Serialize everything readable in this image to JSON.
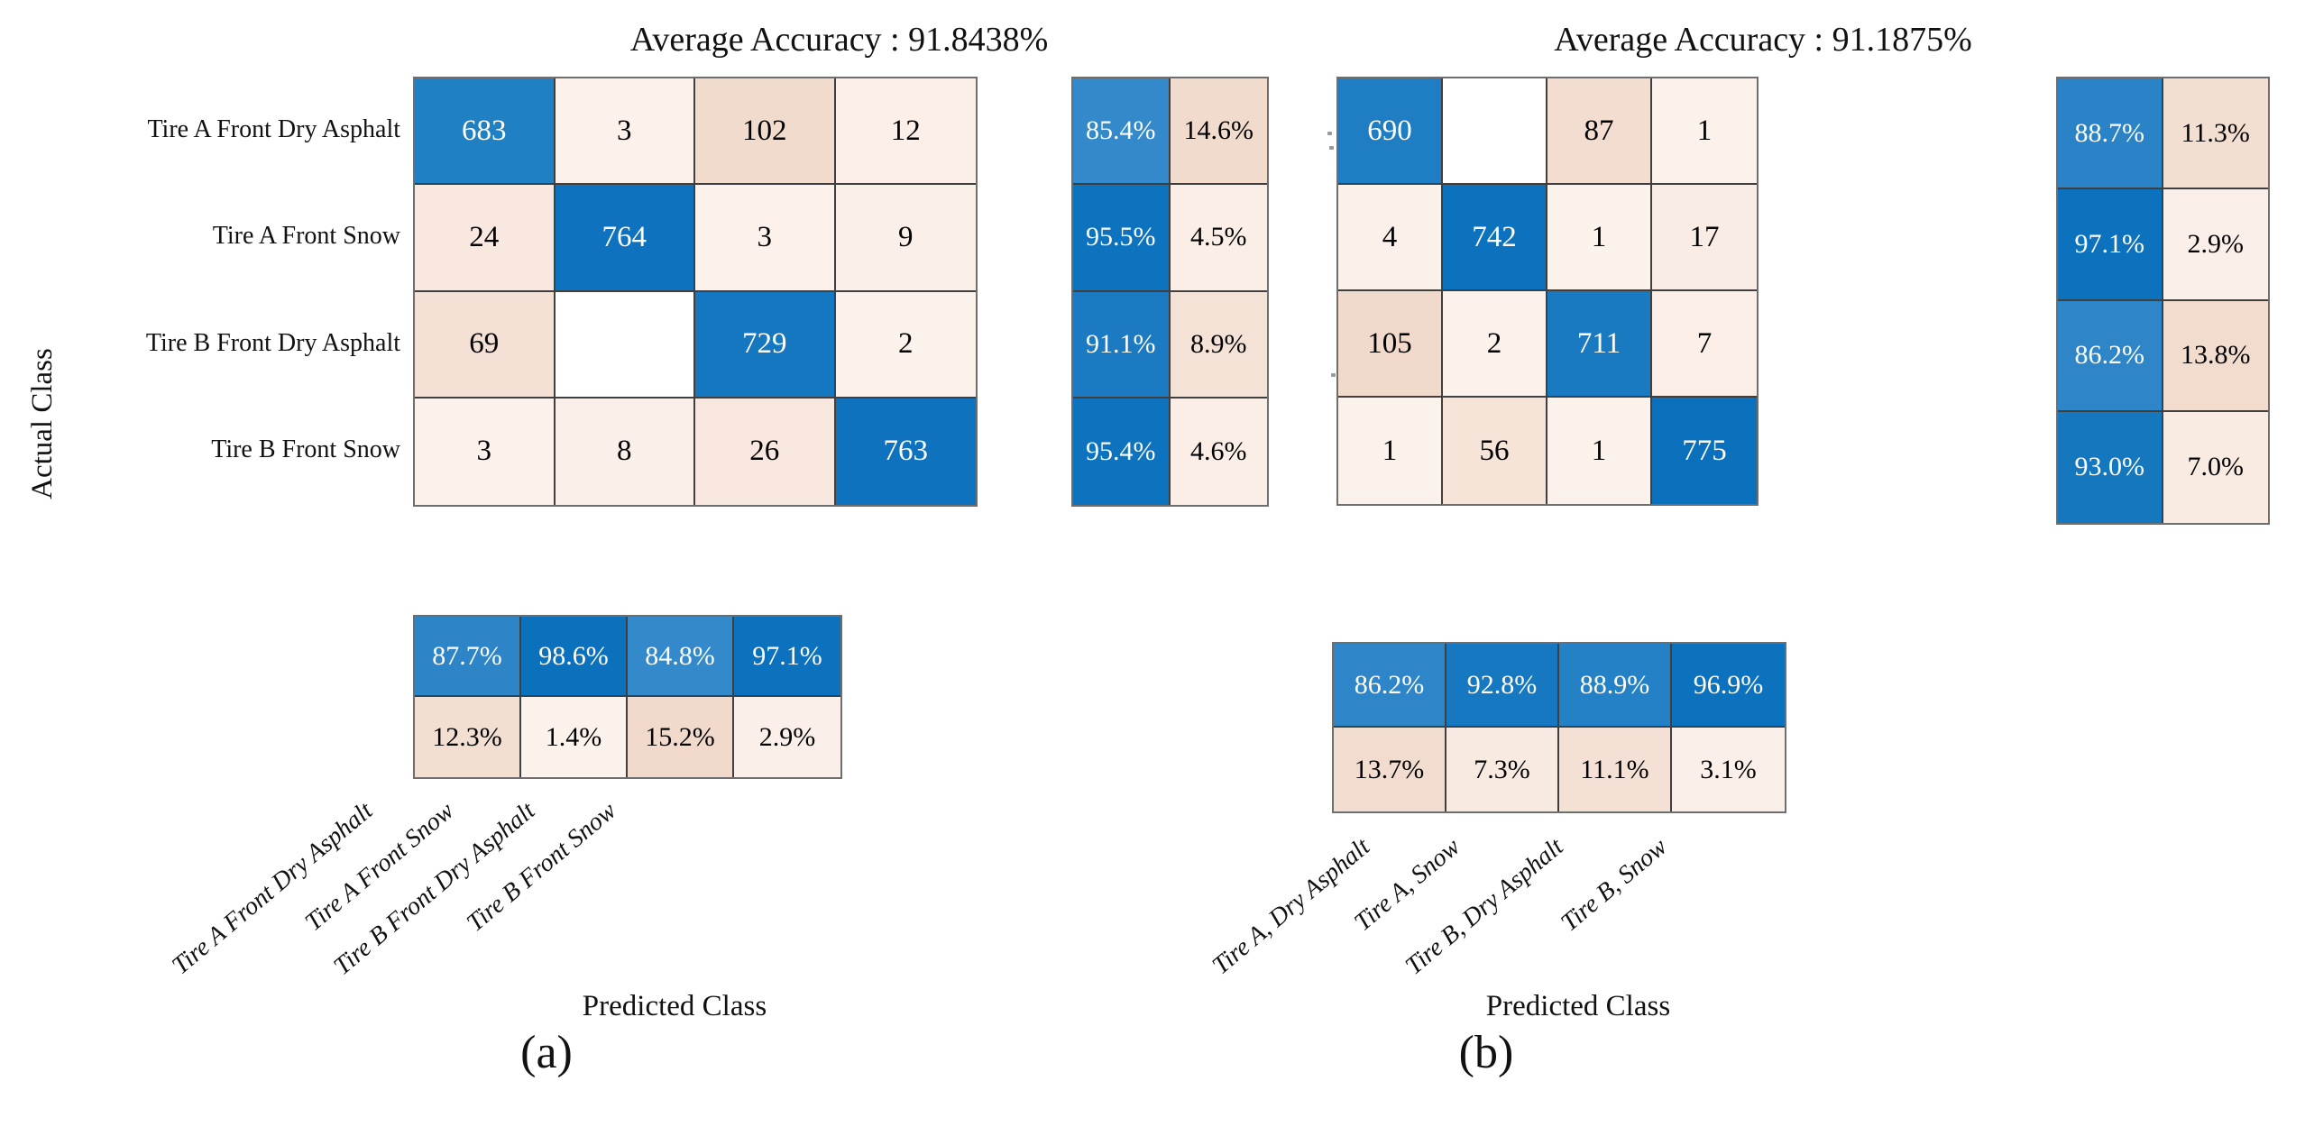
{
  "figure": {
    "background": "#ffffff",
    "grid_line_color": "#3f3f3f",
    "outer_border_color": "#6e6e6e",
    "text_color": "#111111",
    "accent_blue": "#0b70bc",
    "accent_peach": "#f1dacb"
  },
  "chart_data": [
    {
      "type": "heatmap",
      "panel": "(a)",
      "title": "Average Accuracy : 91.8438%",
      "xlabel": "Predicted Class",
      "ylabel": "Actual Class",
      "x_tick_labels": [
        "Tire A Front Dry Asphalt",
        "Tire A Front Snow",
        "Tire B Front Dry Asphalt",
        "Tire B Front Snow"
      ],
      "y_tick_labels": [
        "Tire A Front Dry Asphalt",
        "Tire A Front Snow",
        "Tire B Front Dry Asphalt",
        "Tire B Front Snow"
      ],
      "matrix": {
        "values": [
          [
            683,
            3,
            102,
            12
          ],
          [
            24,
            764,
            3,
            9
          ],
          [
            69,
            null,
            729,
            2
          ],
          [
            3,
            8,
            26,
            763
          ]
        ],
        "bg": [
          [
            "#2080c4",
            "#fcf1eb",
            "#f1dbcc",
            "#fbefe8"
          ],
          [
            "#f8e8df",
            "#0e72be",
            "#fcf1eb",
            "#fbf0e9"
          ],
          [
            "#f4e0d4",
            "#ffffff",
            "#1477c0",
            "#fcf2ec"
          ],
          [
            "#fcf1eb",
            "#fbf0e9",
            "#f8e7de",
            "#0e72be"
          ]
        ]
      },
      "row_summary": {
        "values": [
          [
            "85.4%",
            "14.6%"
          ],
          [
            "95.5%",
            "4.5%"
          ],
          [
            "91.1%",
            "8.9%"
          ],
          [
            "95.4%",
            "4.6%"
          ]
        ],
        "bg": [
          [
            "#3389ca",
            "#f1dbcd"
          ],
          [
            "#0e73be",
            "#faeee6"
          ],
          [
            "#1b7ac1",
            "#f5e2d7"
          ],
          [
            "#0e73be",
            "#faeee6"
          ]
        ]
      },
      "col_summary": {
        "values": [
          [
            "87.7%",
            "98.6%",
            "84.8%",
            "97.1%"
          ],
          [
            "12.3%",
            "1.4%",
            "15.2%",
            "2.9%"
          ]
        ],
        "bg": [
          [
            "#2d85c7",
            "#0c71bd",
            "#3389ca",
            "#0d72bd"
          ],
          [
            "#f3ded2",
            "#fcf2ec",
            "#f1dacb",
            "#fbf0e9"
          ]
        ]
      }
    },
    {
      "type": "heatmap",
      "panel": "(b)",
      "title": "Average Accuracy : 91.1875%",
      "xlabel": "Predicted Class",
      "x_tick_labels": [
        "Tire A, Dry Asphalt",
        "Tire A, Snow",
        "Tire B, Dry Asphalt",
        "Tire B, Snow"
      ],
      "matrix": {
        "values": [
          [
            690,
            null,
            87,
            1
          ],
          [
            4,
            742,
            1,
            17
          ],
          [
            105,
            2,
            711,
            7
          ],
          [
            1,
            56,
            1,
            775
          ]
        ],
        "bg": [
          [
            "#1e7dc3",
            "#ffffff",
            "#f3ddd0",
            "#fcf2ec"
          ],
          [
            "#fcf1ea",
            "#0d72bd",
            "#fcf2ec",
            "#f9ece4"
          ],
          [
            "#f1dacb",
            "#fcf2ec",
            "#1a7ac1",
            "#fbefe8"
          ],
          [
            "#fcf2ec",
            "#f6e4d9",
            "#fcf2ec",
            "#0b70bc"
          ]
        ]
      },
      "row_summary": {
        "values": [
          [
            "88.7%",
            "11.3%"
          ],
          [
            "97.1%",
            "2.9%"
          ],
          [
            "86.2%",
            "13.8%"
          ],
          [
            "93.0%",
            "7.0%"
          ]
        ],
        "bg": [
          [
            "#2a83c6",
            "#f3ded2"
          ],
          [
            "#0d72bd",
            "#fbf0e9"
          ],
          [
            "#2e86c8",
            "#f2dcce"
          ],
          [
            "#1578bf",
            "#f9eae2"
          ]
        ]
      },
      "col_summary": {
        "values": [
          [
            "86.2%",
            "92.8%",
            "88.9%",
            "96.9%"
          ],
          [
            "13.7%",
            "7.3%",
            "11.1%",
            "3.1%"
          ]
        ],
        "bg": [
          [
            "#2e86c8",
            "#1678c0",
            "#2481c5",
            "#0d72bd"
          ],
          [
            "#f2dccf",
            "#f9eae1",
            "#f4e0d4",
            "#fbf0e9"
          ]
        ]
      }
    }
  ]
}
